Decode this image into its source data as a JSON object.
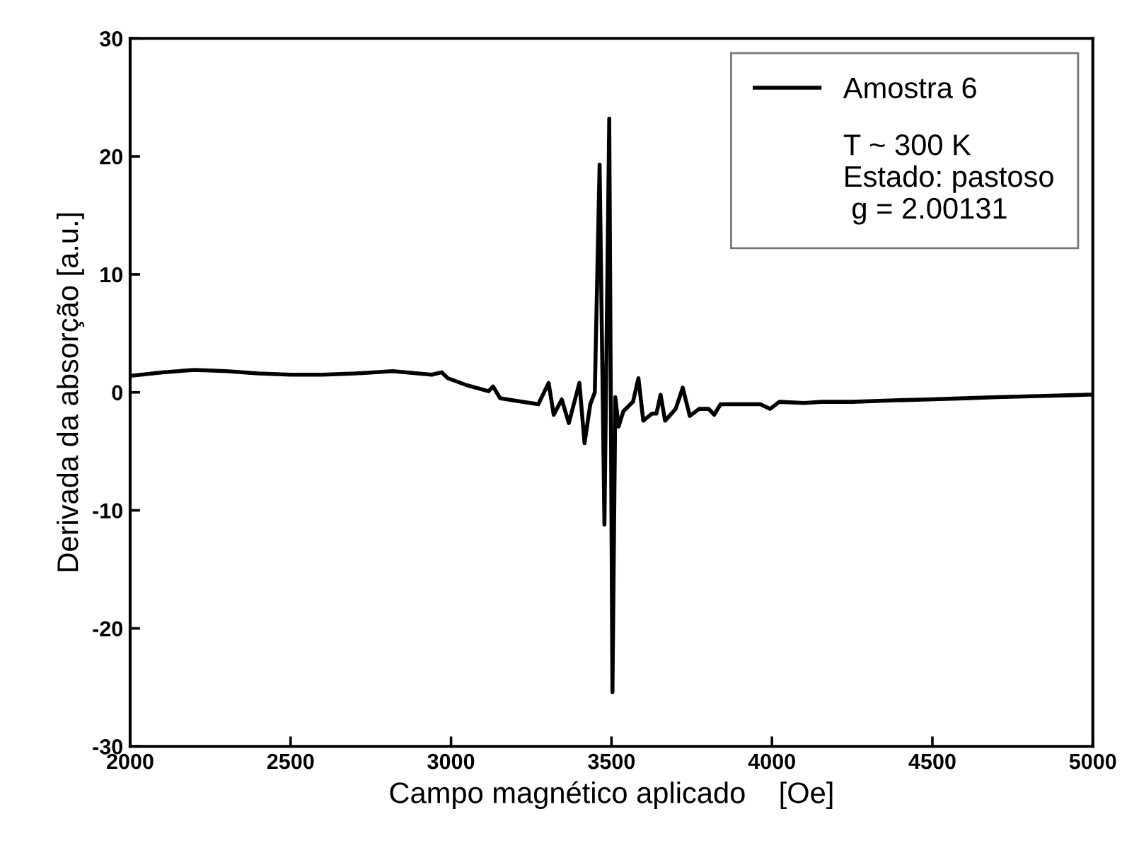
{
  "chart_data": {
    "type": "line",
    "xlabel": "Campo magnético aplicado    [Oe]",
    "ylabel": "Derivada da absorção [a.u.]",
    "xlim": [
      2000,
      5000
    ],
    "xticks": [
      2000,
      2500,
      3000,
      3500,
      4000,
      4500,
      5000
    ],
    "ylim": [
      -30,
      30
    ],
    "yticks": [
      -30,
      -20,
      -10,
      0,
      10,
      20,
      30
    ],
    "grid": false,
    "legend": "top right",
    "annotations": [
      "T ~ 300 K",
      "Estado: pastoso",
      " g = 2.00131"
    ],
    "series": [
      {
        "name": "Amostra 6",
        "color": "#000000",
        "x": [
          2000,
          2100,
          2200,
          2300,
          2400,
          2500,
          2600,
          2700,
          2818,
          2940,
          2971,
          2990,
          3050,
          3117,
          3131,
          3153,
          3200,
          3272,
          3304,
          3320,
          3345,
          3367,
          3400,
          3416,
          3434,
          3448,
          3463,
          3478,
          3493,
          3503,
          3512,
          3522,
          3537,
          3567,
          3584,
          3599,
          3626,
          3640,
          3653,
          3667,
          3700,
          3722,
          3744,
          3773,
          3803,
          3820,
          3840,
          3900,
          3964,
          3994,
          4023,
          4100,
          4155,
          4250,
          4350,
          4484,
          4600,
          4700,
          4850,
          4983,
          5000
        ],
        "values": [
          1.4,
          1.7,
          1.9,
          1.8,
          1.6,
          1.5,
          1.5,
          1.6,
          1.8,
          1.5,
          1.7,
          1.2,
          0.6,
          0.1,
          0.5,
          -0.5,
          -0.7,
          -1.0,
          0.8,
          -1.9,
          -0.6,
          -2.6,
          0.8,
          -4.3,
          -1.0,
          0.0,
          19.3,
          -11.2,
          23.2,
          -25.4,
          -0.4,
          -2.9,
          -1.6,
          -0.8,
          1.2,
          -2.4,
          -1.8,
          -1.8,
          -0.2,
          -2.4,
          -1.4,
          0.4,
          -2.0,
          -1.4,
          -1.4,
          -1.9,
          -1.0,
          -1.0,
          -1.0,
          -1.4,
          -0.8,
          -0.9,
          -0.8,
          -0.8,
          -0.7,
          -0.6,
          -0.5,
          -0.4,
          -0.3,
          -0.2,
          -0.2
        ]
      }
    ]
  }
}
